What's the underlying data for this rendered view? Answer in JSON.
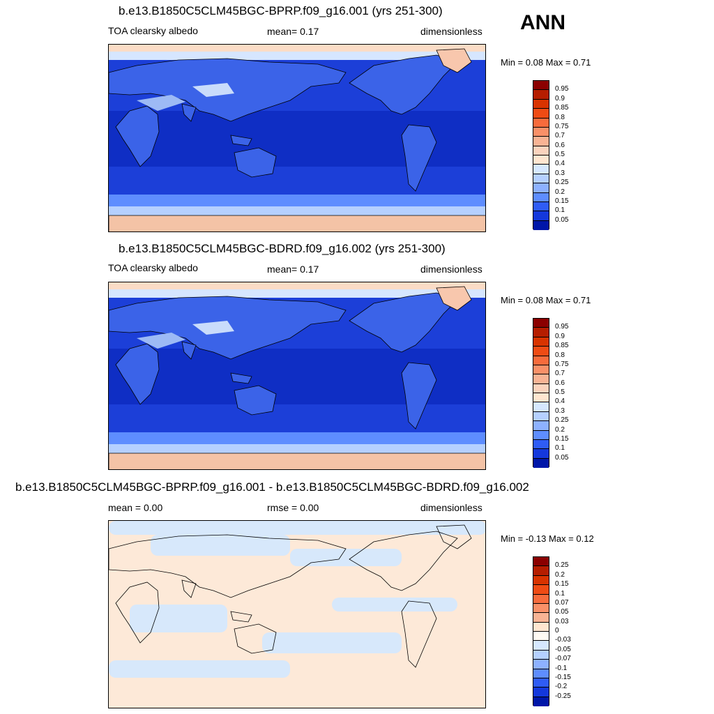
{
  "season": "ANN",
  "panels": [
    {
      "title": "b.e13.B1850C5CLM45BGC-BPRP.f09_g16.001 (yrs 251-300)",
      "left_label": "TOA clearsky albedo",
      "center_label": "mean=   0.17",
      "right_label": "dimensionless",
      "minmax": "Min =   0.08 Max =   0.71",
      "colorbar_labels": [
        "0.95",
        "0.9",
        "0.85",
        "0.8",
        "0.75",
        "0.7",
        "0.6",
        "0.5",
        "0.4",
        "0.3",
        "0.25",
        "0.2",
        "0.15",
        "0.1",
        "0.05"
      ],
      "colors": [
        "#8b0000",
        "#b51d00",
        "#d83300",
        "#ef4b14",
        "#f76b3c",
        "#f99068",
        "#f8b394",
        "#fbd3bd",
        "#ffe6d0",
        "#d6e8ff",
        "#b5d0ff",
        "#8db1ff",
        "#5e8dff",
        "#2f5cf5",
        "#1438dc",
        "#0016a8"
      ]
    },
    {
      "title": "b.e13.B1850C5CLM45BGC-BDRD.f09_g16.002 (yrs 251-300)",
      "left_label": "TOA clearsky albedo",
      "center_label": "mean=   0.17",
      "right_label": "dimensionless",
      "minmax": "Min =   0.08 Max =   0.71",
      "colorbar_labels": [
        "0.95",
        "0.9",
        "0.85",
        "0.8",
        "0.75",
        "0.7",
        "0.6",
        "0.5",
        "0.4",
        "0.3",
        "0.25",
        "0.2",
        "0.15",
        "0.1",
        "0.05"
      ],
      "colors": [
        "#8b0000",
        "#b51d00",
        "#d83300",
        "#ef4b14",
        "#f76b3c",
        "#f99068",
        "#f8b394",
        "#fbd3bd",
        "#ffe6d0",
        "#d6e8ff",
        "#b5d0ff",
        "#8db1ff",
        "#5e8dff",
        "#2f5cf5",
        "#1438dc",
        "#0016a8"
      ]
    },
    {
      "title": "b.e13.B1850C5CLM45BGC-BPRP.f09_g16.001 - b.e13.B1850C5CLM45BGC-BDRD.f09_g16.002",
      "left_label": "mean =   0.00",
      "center_label": "rmse =   0.00",
      "right_label": "dimensionless",
      "minmax": "Min =  -0.13 Max =   0.12",
      "colorbar_labels": [
        "0.25",
        "0.2",
        "0.15",
        "0.1",
        "0.07",
        "0.05",
        "0.03",
        "0",
        "-0.03",
        "-0.05",
        "-0.07",
        "-0.1",
        "-0.15",
        "-0.2",
        "-0.25"
      ],
      "colors": [
        "#8b0000",
        "#b51d00",
        "#d83300",
        "#ef4b14",
        "#f76b3c",
        "#f99068",
        "#f8b394",
        "#ffe6d0",
        "#fffaf3",
        "#d6e8ff",
        "#b5d0ff",
        "#8db1ff",
        "#5e8dff",
        "#2f5cf5",
        "#1438dc",
        "#0016a8"
      ]
    }
  ]
}
